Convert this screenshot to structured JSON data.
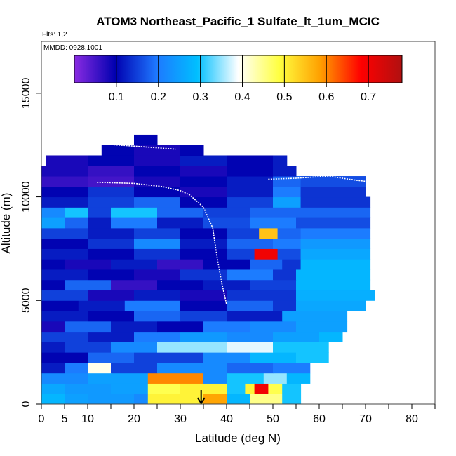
{
  "chart_data": {
    "type": "heatmap",
    "title": "ATOM3 Northeast_Pacific_1 Sulfate_lt_1um_MCIC",
    "flights_label": "Flts: 1,2",
    "dates_label": "MMDD: 0928,1001",
    "xlabel": "Latitude (deg N)",
    "ylabel": "Altitude (m)",
    "xlim": [
      0,
      85
    ],
    "ylim": [
      0,
      17500
    ],
    "x_ticks": [
      0,
      5,
      10,
      20,
      30,
      40,
      50,
      60,
      70,
      80
    ],
    "x_minor_ticks": [
      15,
      25,
      35,
      45,
      55,
      65,
      75,
      85
    ],
    "y_ticks": [
      0,
      5000,
      10000,
      15000
    ],
    "colorbar": {
      "ticks": [
        0.1,
        0.2,
        0.3,
        0.4,
        0.5,
        0.6,
        0.7
      ],
      "range": [
        0.0,
        0.78
      ],
      "colors": [
        "#8a2be2",
        "#0000b0",
        "#1e78ff",
        "#00bfff",
        "#ffffff",
        "#ffff40",
        "#ffa000",
        "#ff0000",
        "#b01010"
      ]
    },
    "arrow_latitude": 34.5,
    "grid": false,
    "layers": [
      {
        "alt": [
          0,
          500
        ],
        "cells": [
          [
            0,
            5,
            0.28
          ],
          [
            5,
            10,
            0.25
          ],
          [
            10,
            20,
            0.24
          ],
          [
            20,
            23,
            0.22
          ],
          [
            23,
            35,
            0.5
          ],
          [
            35,
            40,
            0.58
          ],
          [
            40,
            45,
            0.28
          ],
          [
            45,
            52,
            0.45
          ],
          [
            52,
            56,
            0.3
          ]
        ]
      },
      {
        "alt": [
          500,
          1000
        ],
        "cells": [
          [
            0,
            5,
            0.26
          ],
          [
            5,
            15,
            0.24
          ],
          [
            15,
            23,
            0.25
          ],
          [
            23,
            30,
            0.48
          ],
          [
            30,
            40,
            0.5
          ],
          [
            40,
            44,
            0.3
          ],
          [
            44,
            46,
            0.5
          ],
          [
            46,
            49,
            0.7
          ],
          [
            49,
            52,
            0.48
          ],
          [
            52,
            56,
            0.3
          ]
        ]
      },
      {
        "alt": [
          1000,
          1500
        ],
        "cells": [
          [
            0,
            10,
            0.22
          ],
          [
            10,
            23,
            0.25
          ],
          [
            23,
            35,
            0.6
          ],
          [
            35,
            40,
            0.22
          ],
          [
            40,
            48,
            0.3
          ],
          [
            48,
            53,
            0.35
          ],
          [
            53,
            58,
            0.28
          ]
        ]
      },
      {
        "alt": [
          1500,
          2000
        ],
        "cells": [
          [
            0,
            5,
            0.12
          ],
          [
            5,
            10,
            0.2
          ],
          [
            10,
            15,
            0.4
          ],
          [
            15,
            25,
            0.15
          ],
          [
            25,
            40,
            0.22
          ],
          [
            40,
            50,
            0.18
          ],
          [
            50,
            58,
            0.2
          ]
        ]
      },
      {
        "alt": [
          2000,
          2500
        ],
        "cells": [
          [
            0,
            10,
            0.1
          ],
          [
            10,
            20,
            0.18
          ],
          [
            20,
            35,
            0.15
          ],
          [
            35,
            45,
            0.22
          ],
          [
            45,
            55,
            0.28
          ],
          [
            55,
            62,
            0.3
          ]
        ]
      },
      {
        "alt": [
          2500,
          3000
        ],
        "cells": [
          [
            0,
            5,
            0.12
          ],
          [
            5,
            15,
            0.15
          ],
          [
            15,
            25,
            0.22
          ],
          [
            25,
            40,
            0.35
          ],
          [
            40,
            50,
            0.38
          ],
          [
            50,
            62,
            0.3
          ]
        ]
      },
      {
        "alt": [
          3000,
          3500
        ],
        "cells": [
          [
            0,
            10,
            0.15
          ],
          [
            10,
            20,
            0.12
          ],
          [
            20,
            30,
            0.2
          ],
          [
            30,
            40,
            0.24
          ],
          [
            40,
            50,
            0.22
          ],
          [
            50,
            60,
            0.25
          ],
          [
            60,
            65,
            0.28
          ]
        ]
      },
      {
        "alt": [
          3500,
          4000
        ],
        "cells": [
          [
            0,
            5,
            0.08
          ],
          [
            5,
            15,
            0.18
          ],
          [
            15,
            25,
            0.12
          ],
          [
            25,
            35,
            0.1
          ],
          [
            35,
            45,
            0.2
          ],
          [
            45,
            55,
            0.22
          ],
          [
            55,
            66,
            0.25
          ]
        ]
      },
      {
        "alt": [
          4000,
          4500
        ],
        "cells": [
          [
            0,
            10,
            0.12
          ],
          [
            10,
            20,
            0.1
          ],
          [
            20,
            30,
            0.18
          ],
          [
            30,
            40,
            0.15
          ],
          [
            40,
            52,
            0.12
          ],
          [
            52,
            66,
            0.25
          ]
        ]
      },
      {
        "alt": [
          4500,
          5000
        ],
        "cells": [
          [
            0,
            8,
            0.1
          ],
          [
            8,
            18,
            0.12
          ],
          [
            18,
            30,
            0.2
          ],
          [
            30,
            40,
            0.1
          ],
          [
            40,
            50,
            0.18
          ],
          [
            50,
            55,
            0.14
          ],
          [
            55,
            70,
            0.26
          ]
        ]
      },
      {
        "alt": [
          5000,
          5500
        ],
        "cells": [
          [
            0,
            10,
            0.15
          ],
          [
            10,
            20,
            0.08
          ],
          [
            20,
            30,
            0.12
          ],
          [
            30,
            40,
            0.08
          ],
          [
            40,
            55,
            0.14
          ],
          [
            55,
            72,
            0.27
          ]
        ]
      },
      {
        "alt": [
          5500,
          6000
        ],
        "cells": [
          [
            0,
            5,
            0.1
          ],
          [
            5,
            15,
            0.18
          ],
          [
            15,
            25,
            0.06
          ],
          [
            25,
            35,
            0.1
          ],
          [
            35,
            45,
            0.12
          ],
          [
            45,
            55,
            0.15
          ],
          [
            55,
            71,
            0.28
          ]
        ]
      },
      {
        "alt": [
          6000,
          6500
        ],
        "cells": [
          [
            0,
            10,
            0.12
          ],
          [
            10,
            20,
            0.1
          ],
          [
            20,
            30,
            0.08
          ],
          [
            30,
            40,
            0.14
          ],
          [
            40,
            50,
            0.2
          ],
          [
            50,
            55,
            0.14
          ],
          [
            55,
            71,
            0.28
          ]
        ]
      },
      {
        "alt": [
          6500,
          7000
        ],
        "cells": [
          [
            0,
            5,
            0.1
          ],
          [
            5,
            15,
            0.08
          ],
          [
            15,
            25,
            0.12
          ],
          [
            25,
            35,
            0.06
          ],
          [
            35,
            45,
            0.1
          ],
          [
            45,
            52,
            0.18
          ],
          [
            52,
            56,
            0.14
          ],
          [
            56,
            71,
            0.28
          ]
        ]
      },
      {
        "alt": [
          7000,
          7500
        ],
        "cells": [
          [
            0,
            10,
            0.12
          ],
          [
            10,
            20,
            0.1
          ],
          [
            20,
            30,
            0.14
          ],
          [
            30,
            40,
            0.1
          ],
          [
            40,
            46,
            0.15
          ],
          [
            46,
            51,
            0.7
          ],
          [
            51,
            56,
            0.16
          ],
          [
            56,
            71,
            0.26
          ]
        ]
      },
      {
        "alt": [
          7500,
          8000
        ],
        "cells": [
          [
            0,
            10,
            0.1
          ],
          [
            10,
            20,
            0.14
          ],
          [
            20,
            30,
            0.22
          ],
          [
            30,
            40,
            0.12
          ],
          [
            40,
            50,
            0.18
          ],
          [
            50,
            56,
            0.2
          ],
          [
            56,
            71,
            0.24
          ]
        ]
      },
      {
        "alt": [
          8000,
          8500
        ],
        "cells": [
          [
            0,
            10,
            0.15
          ],
          [
            10,
            20,
            0.12
          ],
          [
            20,
            30,
            0.15
          ],
          [
            30,
            40,
            0.1
          ],
          [
            40,
            47,
            0.15
          ],
          [
            47,
            51,
            0.55
          ],
          [
            51,
            56,
            0.18
          ],
          [
            56,
            71,
            0.2
          ]
        ]
      },
      {
        "alt": [
          8500,
          9000
        ],
        "cells": [
          [
            0,
            5,
            0.25
          ],
          [
            5,
            10,
            0.18
          ],
          [
            10,
            15,
            0.12
          ],
          [
            15,
            25,
            0.2
          ],
          [
            25,
            35,
            0.12
          ],
          [
            35,
            45,
            0.16
          ],
          [
            45,
            55,
            0.2
          ],
          [
            55,
            71,
            0.16
          ]
        ]
      },
      {
        "alt": [
          9000,
          9500
        ],
        "cells": [
          [
            0,
            5,
            0.22
          ],
          [
            5,
            10,
            0.3
          ],
          [
            10,
            15,
            0.15
          ],
          [
            15,
            25,
            0.3
          ],
          [
            25,
            35,
            0.18
          ],
          [
            35,
            45,
            0.15
          ],
          [
            45,
            55,
            0.18
          ],
          [
            55,
            71,
            0.18
          ]
        ]
      },
      {
        "alt": [
          9500,
          10000
        ],
        "cells": [
          [
            0,
            10,
            0.12
          ],
          [
            10,
            20,
            0.15
          ],
          [
            20,
            30,
            0.18
          ],
          [
            30,
            40,
            0.1
          ],
          [
            40,
            50,
            0.15
          ],
          [
            50,
            56,
            0.25
          ],
          [
            56,
            71,
            0.14
          ]
        ]
      },
      {
        "alt": [
          10000,
          10500
        ],
        "cells": [
          [
            0,
            10,
            0.1
          ],
          [
            10,
            20,
            0.14
          ],
          [
            20,
            30,
            0.1
          ],
          [
            30,
            40,
            0.08
          ],
          [
            40,
            50,
            0.12
          ],
          [
            50,
            56,
            0.2
          ],
          [
            56,
            70,
            0.14
          ]
        ]
      },
      {
        "alt": [
          10500,
          11000
        ],
        "cells": [
          [
            0,
            10,
            0.06
          ],
          [
            10,
            20,
            0.05
          ],
          [
            20,
            30,
            0.08
          ],
          [
            30,
            40,
            0.1
          ],
          [
            40,
            50,
            0.12
          ],
          [
            50,
            56,
            0.18
          ],
          [
            56,
            70,
            0.16
          ]
        ]
      },
      {
        "alt": [
          11000,
          11500
        ],
        "cells": [
          [
            0,
            10,
            0.08
          ],
          [
            10,
            20,
            0.06
          ],
          [
            20,
            30,
            0.1
          ],
          [
            30,
            40,
            0.08
          ],
          [
            40,
            50,
            0.1
          ],
          [
            50,
            55,
            0.12
          ]
        ]
      },
      {
        "alt": [
          11500,
          12000
        ],
        "cells": [
          [
            1,
            10,
            0.08
          ],
          [
            10,
            20,
            0.1
          ],
          [
            20,
            30,
            0.08
          ],
          [
            30,
            40,
            0.12
          ],
          [
            40,
            50,
            0.1
          ],
          [
            50,
            53,
            0.12
          ]
        ]
      },
      {
        "alt": [
          12000,
          12500
        ],
        "cells": [
          [
            13,
            20,
            0.1
          ],
          [
            20,
            30,
            0.08
          ],
          [
            30,
            35,
            0.1
          ]
        ]
      },
      {
        "alt": [
          12500,
          13000
        ],
        "cells": [
          [
            20,
            25,
            0.1
          ]
        ]
      }
    ],
    "flight_tracks": [
      [
        [
          12,
          10700
        ],
        [
          20,
          10650
        ],
        [
          26,
          10500
        ],
        [
          30,
          10300
        ],
        [
          32,
          10100
        ],
        [
          35,
          9500
        ],
        [
          37,
          8500
        ],
        [
          38,
          7000
        ],
        [
          39,
          5800
        ],
        [
          40,
          4800
        ]
      ],
      [
        [
          13,
          12550
        ],
        [
          20,
          12450
        ],
        [
          26,
          12350
        ],
        [
          29,
          12300
        ]
      ],
      [
        [
          49,
          10850
        ],
        [
          55,
          10900
        ],
        [
          62,
          11000
        ],
        [
          68,
          10800
        ],
        [
          70,
          10750
        ]
      ]
    ]
  }
}
